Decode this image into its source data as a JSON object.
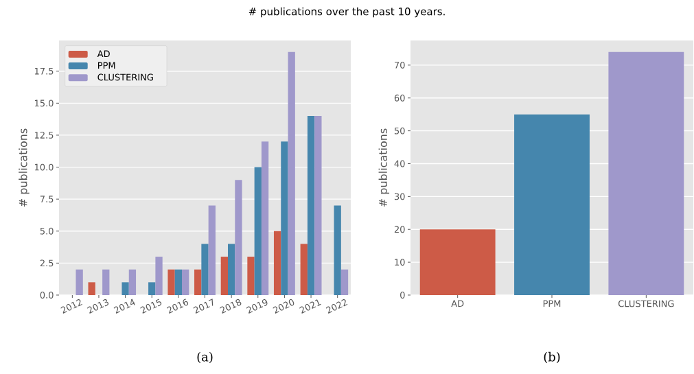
{
  "chart_data": [
    {
      "type": "bar",
      "title": "# publications over the past 10 years.",
      "ylabel": "# publications",
      "categories": [
        "2012",
        "2013",
        "2014",
        "2015",
        "2016",
        "2017",
        "2018",
        "2019",
        "2020",
        "2021",
        "2022"
      ],
      "series": [
        {
          "name": "AD",
          "color": "#cd5b47",
          "values": [
            0,
            1,
            0,
            0,
            2,
            2,
            3,
            3,
            5,
            4,
            0
          ]
        },
        {
          "name": "PPM",
          "color": "#4586ad",
          "values": [
            0,
            0,
            1,
            1,
            2,
            4,
            4,
            10,
            12,
            14,
            7
          ]
        },
        {
          "name": "CLUSTERING",
          "color": "#9f98cb",
          "values": [
            2,
            2,
            2,
            3,
            2,
            7,
            9,
            12,
            19,
            14,
            2
          ]
        }
      ],
      "ylim": [
        0,
        19.9
      ],
      "yticks": [
        {
          "value": 0,
          "label": "0.0"
        },
        2.5,
        {
          "value": 5,
          "label": "5.0"
        },
        7.5,
        {
          "value": 10,
          "label": "10.0"
        },
        12.5,
        {
          "value": 15,
          "label": "15.0"
        },
        17.5
      ],
      "grid": "y",
      "legend": "top left",
      "annotations": [
        "(a)"
      ]
    },
    {
      "type": "bar",
      "ylabel": "# publications",
      "categories": [
        "AD",
        "PPM",
        "CLUSTERING"
      ],
      "values": [
        20,
        55,
        74
      ],
      "colors": [
        "#cd5b47",
        "#4586ad",
        "#9f98cb"
      ],
      "ylim": [
        0,
        77.5
      ],
      "yticks": [
        0,
        10,
        20,
        30,
        40,
        50,
        60,
        70
      ],
      "grid": "y",
      "annotations": [
        "(b)"
      ]
    }
  ]
}
